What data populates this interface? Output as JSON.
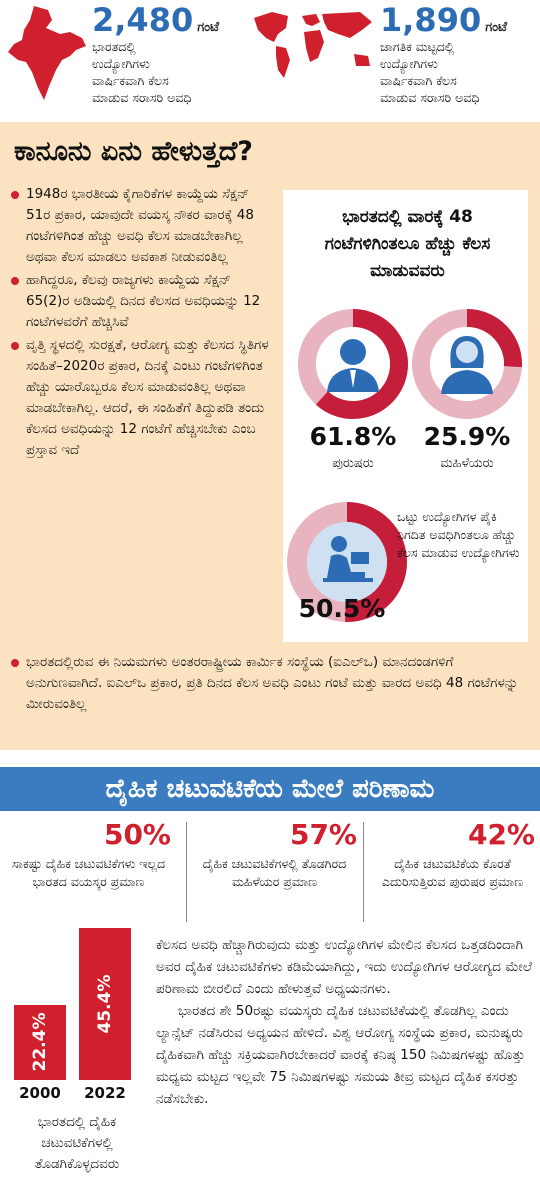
{
  "top_stats": [
    {
      "number": "2,480",
      "unit": "ಗಂಟೆ",
      "lines": [
        "ಭಾರತದಲ್ಲಿ",
        "ಉದ್ಯೋಗಿಗಳು",
        "ವಾರ್ಷಿಕವಾಗಿ ಕೆಲಸ",
        "ಮಾಡುವ ಸರಾಸರಿ ಅವಧಿ"
      ]
    },
    {
      "number": "1,890",
      "unit": "ಗಂಟೆ",
      "lines": [
        "ಜಾಗತಿಕ ಮಟ್ಟದಲ್ಲಿ",
        "ಉದ್ಯೋಗಿಗಳು",
        "ವಾರ್ಷಿಕವಾಗಿ ಕೆಲಸ",
        "ಮಾಡುವ ಸರಾಸರಿ ಅವಧಿ"
      ]
    }
  ],
  "law": {
    "title": "ಕಾನೂನು ಏನು ಹೇಳುತ್ತದೆ?",
    "bullets": [
      "1948ರ ಭಾರತೀಯ ಕೈಗಾರಿಕೆಗಳ ಕಾಯ್ದೆಯ ಸೆಕ್ಷನ್ 51ರ ಪ್ರಕಾರ, ಯಾವುದೇ ವಯಸ್ಕ ನೌಕರ ವಾರಕ್ಕೆ 48 ಗಂಟೆಗಳಿಗಿಂತ ಹೆಚ್ಚು ಅವಧಿ ಕೆಲಸ ಮಾಡಬೇಕಾಗಿಲ್ಲ ಅಥವಾ ಕೆಲಸ ಮಾಡಲು ಅವಕಾಶ ನೀಡುವಂತಿಲ್ಲ",
      "ಹಾಗಿದ್ದರೂ, ಕೆಲವು ರಾಜ್ಯಗಳು ಕಾಯ್ದೆಯ ಸೆಕ್ಷನ್ 65(2)ರ ಅಡಿಯಲ್ಲಿ ದಿನದ ಕೆಲಸದ ಅವಧಿಯನ್ನು 12 ಗಂಟೆಗಳವರೆಗೆ ಹೆಚ್ಚಿಸಿವೆ",
      "ವೃತ್ತಿ ಸ್ಥಳದಲ್ಲಿ ಸುರಕ್ಷತೆ, ಆರೋಗ್ಯ ಮತ್ತು ಕೆಲಸದ ಸ್ಥಿತಿಗಳ ಸಂಹಿತೆ–2020ರ ಪ್ರಕಾರ, ದಿನಕ್ಕೆ ಎಂಟು ಗಂಟೆಗಳಿಗಿಂತ ಹೆಚ್ಚು ಯಾರೊಬ್ಬರೂ ಕೆಲಸ ಮಾಡುವಂತಿಲ್ಲ ಅಥವಾ ಮಾಡಬೇಕಾಗಿಲ್ಲ. ಆದರೆ, ಈ ಸಂಹಿತೆಗೆ ತಿದ್ದುಪಡಿ ತಂದು ಕೆಲಸದ ಅವಧಿಯನ್ನು 12 ಗಂಟೆಗೆ ಹೆಚ್ಚಿಸಬೇಕು ಎಂಬ ಪ್ರಸ್ತಾವ ಇದೆ",
      "ಭಾರತದಲ್ಲಿರುವ ಈ ನಿಯಮಗಳು ಅಂತರರಾಷ್ಟ್ರೀಯ ಕಾರ್ಮಿಕ ಸಂಸ್ಥೆಯ (ಐಎಲ್‌ಒ) ಮಾನದಂಡಗಳಿಗೆ ಅನುಗುಣವಾಗಿದೆ. ಐಎಲ್‌ಒ ಪ್ರಕಾರ, ಪ್ರತಿ ದಿನದ ಕೆಲಸ ಅವಧಿ ಎಂಟು ಗಂಟೆ ಮತ್ತು ವಾರದ ಅವಧಿ 48 ಗಂಟೆಗಳನ್ನು ಮೀರುವಂತಿಲ್ಲ"
    ]
  },
  "overtime": {
    "title": "ಭಾರತದಲ್ಲಿ ವಾರಕ್ಕೆ 48 ಗಂಟೆಗಳಿಗಿಂತಲೂ ಹೆಚ್ಚು ಕೆಲಸ ಮಾಡುವವರು",
    "donuts": [
      {
        "value": 61.8,
        "label": "61.8%",
        "caption": "ಪುರುಷರು"
      },
      {
        "value": 25.9,
        "label": "25.9%",
        "caption": "ಮಹಿಳೆಯರು"
      },
      {
        "value": 50.5,
        "label": "50.5%",
        "caption": "ಒಟ್ಟು ಉದ್ಯೋಗಿಗಳ ಪೈಕಿ ನಿಗದಿತ ಅವಧಿಗಿಂತಲೂ ಹೆಚ್ಚು ಕೆಲಸ ಮಾಡುವ ಉದ್ಯೋಗಿಗಳು"
      }
    ]
  },
  "impact": {
    "banner": "ದೈಹಿಕ ಚಟುವಟಿಕೆಯ ಮೇಲೆ ಪರಿಣಾಮ",
    "stats": [
      {
        "number": "50%",
        "text": "ಸಾಕಷ್ಟು ದೈಹಿಕ ಚಟುವಟಿಕೆಗಳು ಇಲ್ಲದ ಭಾರತದ ವಯಸ್ಕರ ಪ್ರಮಾಣ"
      },
      {
        "number": "57%",
        "text": "ದೈಹಿಕ ಚಟುವಟಿಕೆಗಳಲ್ಲಿ ತೊಡಗಿರದ ಮಹಿಳೆಯರ ಪ್ರಮಾಣ"
      },
      {
        "number": "42%",
        "text": "ದೈಹಿಕ ಚಟುವಟಿಕೆಯ ಕೊರತೆ ಎದುರಿಸುತ್ತಿರುವ ಪುರುಷರ ಪ್ರಮಾಣ"
      }
    ],
    "chart_data": {
      "type": "bar",
      "categories": [
        "2000",
        "2022"
      ],
      "values": [
        22.4,
        45.4
      ],
      "value_labels": [
        "22.4%",
        "45.4%"
      ],
      "color": "#d0202e",
      "caption": "ಭಾರತದಲ್ಲಿ ದೈಹಿಕ ಚಟುವಟಿಕೆಗಳಲ್ಲಿ ತೊಡಗಿಕೊಳ್ಳದವರು"
    },
    "paragraphs": [
      "ಕೆಲಸದ ಅವಧಿ ಹೆಚ್ಚಾಗಿರುವುದು ಮತ್ತು ಉದ್ಯೋಗಿಗಳ ಮೇಲಿನ ಕೆಲಸದ ಒತ್ತಡದಿಂದಾಗಿ ಅವರ ದೈಹಿಕ ಚಟುವಟಿಕೆಗಳು ಕಡಿಮೆಯಾಗಿದ್ದು, ಇದು ಉದ್ಯೋಗಿಗಳ ಆರೋಗ್ಯದ ಮೇಲೆ ಪರಿಣಾಮ ಬೀರಲಿದೆ ಎಂದು ಹೇಳುತ್ತವೆ ಅಧ್ಯಯನಗಳು.",
      "ಭಾರತದ ಶೇ 50ರಷ್ಟು ವಯಸ್ಕರು ದೈಹಿಕ ಚಟುವಟಿಕೆಯಲ್ಲಿ ತೊಡಗಿಲ್ಲ ಎಂದು ಲ್ಯಾನ್ಸೆಟ್ ನಡೆಸಿರುವ ಅಧ್ಯಯನ ಹೇಳಿದೆ. ವಿಶ್ವ ಆರೋಗ್ಯ ಸಂಸ್ಥೆಯ ಪ್ರಕಾರ, ಮನುಷ್ಯರು ದೈಹಿಕವಾಗಿ ಹೆಚ್ಚು ಸಕ್ರಿಯವಾಗಿರಬೇಕಾದರೆ ವಾರಕ್ಕೆ ಕನಿಷ್ಠ 150 ನಿಮಿಷಗಳಷ್ಟು ಹೊತ್ತು ಮಧ್ಯಮ ಮಟ್ಟದ ಇಲ್ಲವೇ 75 ನಿಮಿಷಗಳಷ್ಟು ಸಮಯ ತೀವ್ರ ಮಟ್ಟದ ದೈಹಿಕ ಕಸರತ್ತು ನಡೆಸಬೇಕು."
    ]
  }
}
